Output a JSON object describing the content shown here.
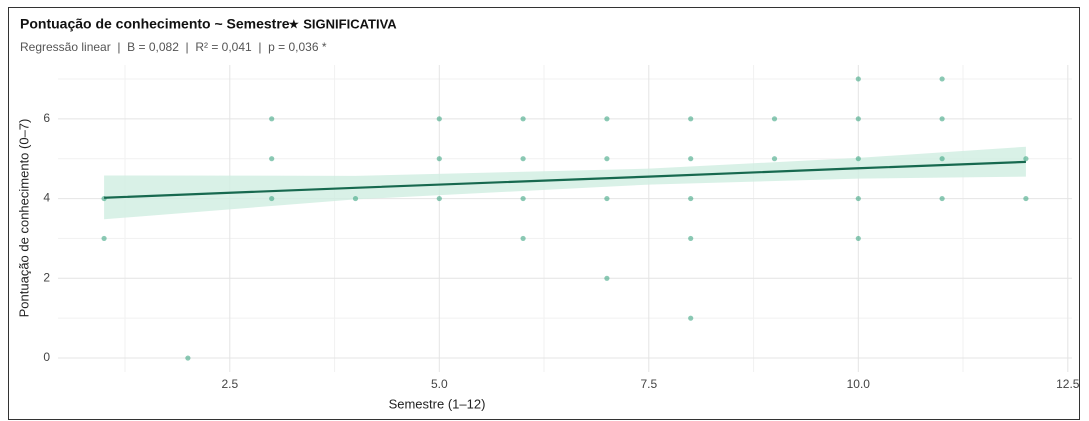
{
  "chart_data": {
    "type": "scatter",
    "title": "Pontuação de conhecimento ~ Semestre",
    "badge": "★ SIGNIFICATIVA",
    "subtitle": "Regressão linear  |  B = 0,082  |  R² = 0,041  |  p = 0,036 *",
    "xlabel": "Semestre (1–12)",
    "ylabel": "Pontuação de conhecimento (0–7)",
    "xlim": [
      0.45,
      12.55
    ],
    "ylim": [
      -0.35,
      7.35
    ],
    "xticks": [
      {
        "value": 2.5,
        "label": "2.5"
      },
      {
        "value": 5,
        "label": "5.0"
      },
      {
        "value": 7.5,
        "label": "7.5"
      },
      {
        "value": 10,
        "label": "10.0"
      },
      {
        "value": 12.5,
        "label": "12.5"
      }
    ],
    "yticks": [
      0,
      2,
      4,
      6
    ],
    "xminorticks": [
      1.25,
      3.75,
      6.25,
      8.75,
      11.25
    ],
    "yminorticks": [
      1,
      3,
      5,
      7
    ],
    "grid": true,
    "color": "#2e9e78",
    "x": [
      1,
      1,
      2,
      3,
      3,
      3,
      4,
      5,
      5,
      5,
      6,
      6,
      6,
      6,
      7,
      7,
      7,
      7,
      8,
      8,
      8,
      8,
      8,
      9,
      9,
      10,
      10,
      10,
      10,
      10,
      11,
      11,
      11,
      11,
      12,
      12
    ],
    "values": [
      4,
      3,
      0,
      6,
      5,
      4,
      4,
      6,
      5,
      4,
      6,
      5,
      4,
      3,
      6,
      5,
      4,
      2,
      6,
      5,
      4,
      3,
      1,
      6,
      5,
      7,
      6,
      5,
      4,
      3,
      7,
      6,
      5,
      4,
      5,
      4
    ],
    "fit": {
      "color": "#17694f",
      "band_color": "#cfeee1",
      "x": [
        1,
        4,
        7.5,
        10,
        12
      ],
      "values": [
        4.02,
        4.27,
        4.55,
        4.76,
        4.92
      ],
      "lower": [
        3.48,
        3.98,
        4.35,
        4.5,
        4.55
      ],
      "upper": [
        4.58,
        4.57,
        4.75,
        5.02,
        5.3
      ]
    }
  }
}
